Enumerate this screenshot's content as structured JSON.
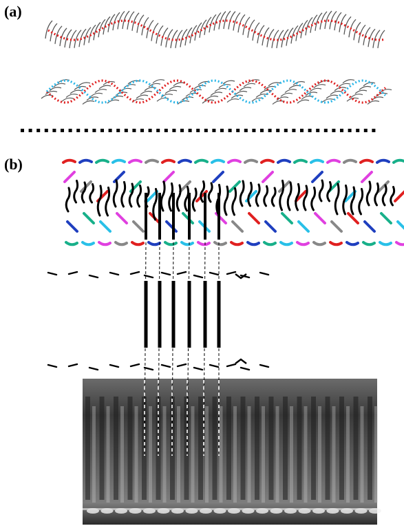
{
  "panels": {
    "a": {
      "label": "(a)"
    },
    "b": {
      "label": "(b)"
    }
  },
  "colors": {
    "strand_red": "#e02020",
    "strand_cyan": "#29b6e8",
    "chain_gray": "#555555",
    "ink": "#000000",
    "segment_palette": [
      "#e02020",
      "#1f3fbf",
      "#18b08a",
      "#29c0e8",
      "#e040e0",
      "#888888"
    ]
  },
  "micrograph": {
    "shading": "grayscale",
    "description_visible": false
  }
}
